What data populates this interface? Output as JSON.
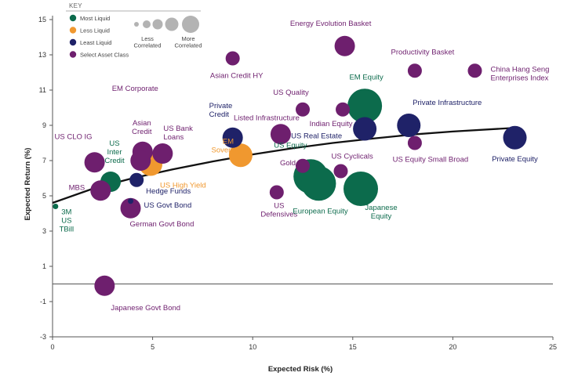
{
  "chart_data": {
    "type": "scatter",
    "xlabel": "Expected Risk (%)",
    "ylabel": "Expected Return (%)",
    "xlim": [
      0,
      25
    ],
    "ylim": [
      -3,
      15
    ],
    "x_ticks": [
      "0",
      "5",
      "10",
      "15",
      "20",
      "25"
    ],
    "y_ticks": [
      "-3",
      "-1",
      "1",
      "3",
      "5",
      "7",
      "9",
      "11",
      "13",
      "15"
    ],
    "key": {
      "title": "KEY",
      "categories": [
        {
          "id": "most",
          "name": "Most Liquid",
          "color": "#0c6b4c"
        },
        {
          "id": "less",
          "name": "Less Liquid",
          "color": "#f0982f"
        },
        {
          "id": "least",
          "name": "Least Liquid",
          "color": "#1f2268"
        },
        {
          "id": "select",
          "name": "Select Asset Class",
          "color": "#6e1f6e"
        }
      ],
      "size_low": "Less\nCorrelated",
      "size_high": "More\nCorrelated",
      "size_color": "#b3b3b3"
    },
    "trend_line": {
      "x": [
        0,
        2,
        4,
        6,
        8,
        10,
        12,
        14,
        16,
        18,
        20,
        23
      ],
      "y": [
        4.6,
        5.4,
        6.0,
        6.5,
        6.95,
        7.35,
        7.7,
        8.0,
        8.25,
        8.48,
        8.65,
        8.85
      ]
    },
    "points": [
      {
        "name": "3M\nUS\nTBill",
        "x": 0.15,
        "y": 4.4,
        "size": 1,
        "cat": "most"
      },
      {
        "name": "US Govt Bond",
        "x": 3.9,
        "y": 4.7,
        "size": 1,
        "cat": "least"
      },
      {
        "name": "US\nInter\nCredit",
        "x": 2.9,
        "y": 5.8,
        "size": 3,
        "cat": "most"
      },
      {
        "name": "Hedge Funds",
        "x": 4.2,
        "y": 5.9,
        "size": 2,
        "cat": "least"
      },
      {
        "name": "MBS",
        "x": 2.4,
        "y": 5.3,
        "size": 3,
        "cat": "select"
      },
      {
        "name": "US CLO IG",
        "x": 2.1,
        "y": 6.9,
        "size": 3,
        "cat": "select"
      },
      {
        "name": "German Govt Bond",
        "x": 3.9,
        "y": 4.3,
        "size": 3,
        "cat": "select"
      },
      {
        "name": "Japanese Govt Bond",
        "x": 2.6,
        "y": -0.1,
        "size": 3,
        "cat": "select"
      },
      {
        "name": "US High Yield",
        "x": 4.9,
        "y": 6.8,
        "size": 4,
        "cat": "less"
      },
      {
        "name": "Asian\nCredit",
        "x": 4.5,
        "y": 7.5,
        "size": 3,
        "cat": "select"
      },
      {
        "name": "US Bank\nLoans",
        "x": 5.5,
        "y": 7.4,
        "size": 3,
        "cat": "select"
      },
      {
        "name": "EM Corporate",
        "x": 4.4,
        "y": 7.0,
        "size": 3,
        "cat": "select"
      },
      {
        "name": "Private\nCredit",
        "x": 9.0,
        "y": 8.3,
        "size": 3,
        "cat": "least"
      },
      {
        "name": "EM\nSovereign",
        "x": 9.4,
        "y": 7.3,
        "size": 4,
        "cat": "less"
      },
      {
        "name": "Asian Credit HY",
        "x": 9.0,
        "y": 12.8,
        "size": 2,
        "cat": "select"
      },
      {
        "name": "Listed Infrastructure",
        "x": 11.4,
        "y": 8.5,
        "size": 3,
        "cat": "select"
      },
      {
        "name": "US Quality",
        "x": 12.5,
        "y": 9.9,
        "size": 2,
        "cat": "select"
      },
      {
        "name": "US\nDefensives",
        "x": 11.2,
        "y": 5.2,
        "size": 2,
        "cat": "select"
      },
      {
        "name": "Gold",
        "x": 12.5,
        "y": 6.7,
        "size": 2,
        "cat": "select"
      },
      {
        "name": "US Equity",
        "x": 12.9,
        "y": 6.1,
        "size": 6,
        "cat": "most"
      },
      {
        "name": "European Equity",
        "x": 13.3,
        "y": 5.7,
        "size": 6,
        "cat": "most"
      },
      {
        "name": "Japanese\nEquity",
        "x": 15.4,
        "y": 5.4,
        "size": 6,
        "cat": "most"
      },
      {
        "name": "US Cyclicals",
        "x": 14.4,
        "y": 6.4,
        "size": 2,
        "cat": "select"
      },
      {
        "name": "Indian Equity",
        "x": 14.5,
        "y": 9.9,
        "size": 2,
        "cat": "select"
      },
      {
        "name": "EM Equity",
        "x": 15.6,
        "y": 10.1,
        "size": 6,
        "cat": "most"
      },
      {
        "name": "US Real Estate",
        "x": 15.6,
        "y": 8.8,
        "size": 4,
        "cat": "least"
      },
      {
        "name": "Energy Evolution Basket",
        "x": 14.6,
        "y": 13.5,
        "size": 3,
        "cat": "select"
      },
      {
        "name": "Productivity Basket",
        "x": 18.1,
        "y": 12.1,
        "size": 2,
        "cat": "select"
      },
      {
        "name": "China Hang Seng\nEnterprises Index",
        "x": 21.1,
        "y": 12.1,
        "size": 2,
        "cat": "select"
      },
      {
        "name": "Private Infrastructure",
        "x": 17.8,
        "y": 9.0,
        "size": 4,
        "cat": "least"
      },
      {
        "name": "US Equity Small Broad",
        "x": 18.1,
        "y": 8.0,
        "size": 2,
        "cat": "select"
      },
      {
        "name": "Private Equity",
        "x": 23.1,
        "y": 8.3,
        "size": 4,
        "cat": "least"
      }
    ]
  }
}
